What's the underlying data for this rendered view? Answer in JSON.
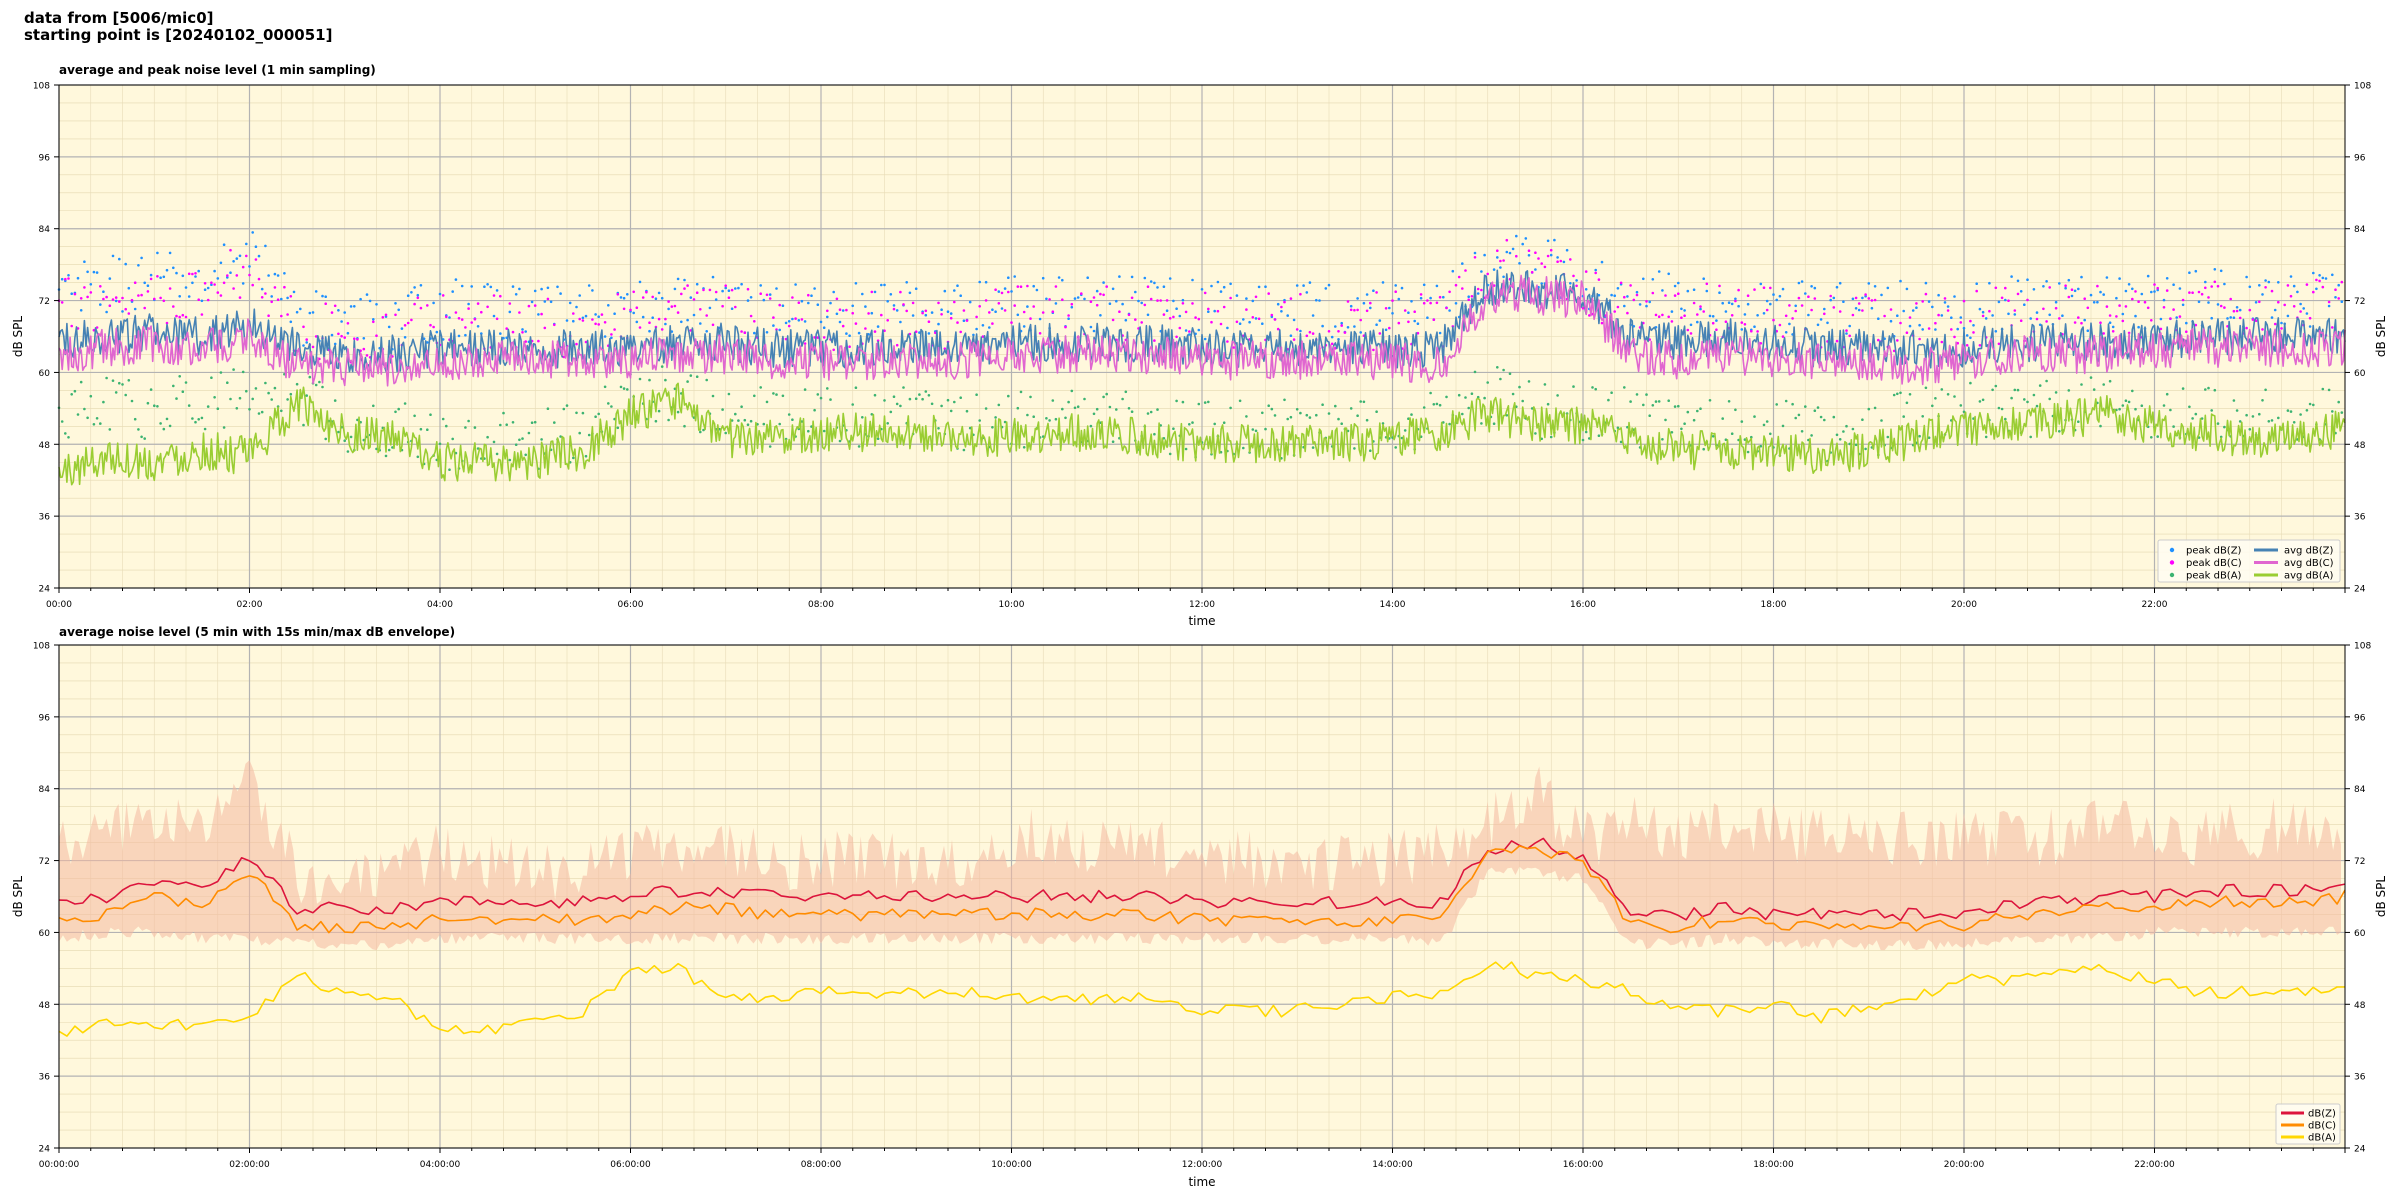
{
  "header": {
    "line1": "data from [5006/mic0]",
    "line2": "starting point is [20240102_000051]"
  },
  "chart_data": [
    {
      "type": "line",
      "title": "average and peak noise level (1 min sampling)",
      "xlabel": "time",
      "ylabel": "dB SPL",
      "ylim": [
        24,
        108
      ],
      "y_ticks": [
        24,
        36,
        48,
        60,
        72,
        84,
        96,
        108
      ],
      "xlim_hours": [
        0,
        24
      ],
      "x_tick_labels": [
        "00:00",
        "02:00",
        "04:00",
        "06:00",
        "08:00",
        "10:00",
        "12:00",
        "14:00",
        "16:00",
        "18:00",
        "20:00",
        "22:00"
      ],
      "x_tick_hours": [
        0,
        2,
        4,
        6,
        8,
        10,
        12,
        14,
        16,
        18,
        20,
        22
      ],
      "grid": true,
      "background": "#fff8dc",
      "legend_position": "lower-right",
      "legend_columns": 2,
      "x_hours": [
        0,
        0.5,
        1,
        1.5,
        2,
        2.5,
        3,
        3.5,
        4,
        4.5,
        5,
        5.5,
        6,
        6.5,
        7,
        7.5,
        8,
        8.5,
        9,
        9.5,
        10,
        10.5,
        11,
        11.5,
        12,
        12.5,
        13,
        13.5,
        14,
        14.5,
        15,
        15.5,
        16,
        16.5,
        17,
        17.5,
        18,
        18.5,
        19,
        19.5,
        20,
        20.5,
        21,
        21.5,
        22,
        22.5,
        23,
        23.5,
        24
      ],
      "series": [
        {
          "name": "avg dB(Z)",
          "kind": "line",
          "color": "#4682b4",
          "values": [
            65,
            66,
            67,
            66,
            68,
            64,
            63,
            63,
            64,
            64,
            64,
            64,
            64,
            65,
            65,
            64,
            64,
            64,
            64,
            64,
            65,
            65,
            65,
            65,
            64,
            64,
            64,
            64,
            64,
            64,
            74,
            74,
            73,
            66,
            65,
            66,
            65,
            64,
            64,
            64,
            64,
            65,
            65,
            65,
            65,
            66,
            66,
            66,
            66
          ]
        },
        {
          "name": "avg dB(C)",
          "kind": "line",
          "color": "#e066d0",
          "values": [
            63,
            64,
            65,
            64,
            66,
            61,
            61,
            61,
            62,
            62,
            62,
            62,
            62,
            63,
            63,
            62,
            62,
            62,
            62,
            62,
            63,
            63,
            63,
            63,
            62,
            62,
            62,
            62,
            62,
            61,
            73,
            73,
            72,
            63,
            62,
            63,
            62,
            62,
            62,
            61,
            62,
            63,
            63,
            63,
            64,
            64,
            64,
            64,
            64
          ]
        },
        {
          "name": "avg dB(A)",
          "kind": "line",
          "color": "#9acd32",
          "values": [
            43,
            46,
            45,
            47,
            46,
            55,
            50,
            49,
            45,
            45,
            45,
            47,
            53,
            55,
            49,
            49,
            50,
            50,
            50,
            49,
            49,
            50,
            50,
            49,
            48,
            48,
            48,
            48,
            49,
            50,
            53,
            51,
            51,
            49,
            47,
            47,
            47,
            46,
            47,
            49,
            51,
            51,
            52,
            53,
            51,
            50,
            49,
            49,
            51
          ]
        },
        {
          "name": "peak dB(Z)",
          "kind": "scatter",
          "color": "#1e90ff",
          "values": [
            72,
            74,
            75,
            74,
            80,
            69,
            68,
            68,
            70,
            70,
            69,
            69,
            70,
            71,
            71,
            70,
            70,
            70,
            70,
            70,
            71,
            71,
            71,
            71,
            70,
            70,
            70,
            70,
            70,
            70,
            78,
            78,
            75,
            72,
            71,
            72,
            71,
            70,
            70,
            70,
            70,
            71,
            71,
            71,
            72,
            72,
            72,
            72,
            72
          ]
        },
        {
          "name": "peak dB(C)",
          "kind": "scatter",
          "color": "#ff00ff",
          "values": [
            70,
            72,
            73,
            72,
            78,
            67,
            66,
            66,
            68,
            68,
            67,
            67,
            68,
            69,
            69,
            68,
            68,
            68,
            68,
            68,
            69,
            69,
            69,
            69,
            68,
            68,
            68,
            68,
            68,
            68,
            77,
            77,
            74,
            70,
            69,
            70,
            69,
            68,
            68,
            68,
            68,
            69,
            69,
            69,
            70,
            70,
            70,
            70,
            70
          ]
        },
        {
          "name": "peak dB(A)",
          "kind": "scatter",
          "color": "#3cb371",
          "values": [
            52,
            54,
            53,
            55,
            55,
            56,
            51,
            50,
            48,
            48,
            48,
            50,
            55,
            56,
            52,
            52,
            52,
            52,
            52,
            51,
            52,
            52,
            52,
            51,
            50,
            50,
            50,
            50,
            51,
            52,
            56,
            53,
            53,
            52,
            50,
            50,
            50,
            49,
            50,
            52,
            53,
            53,
            54,
            55,
            53,
            52,
            52,
            52,
            53
          ]
        }
      ]
    },
    {
      "type": "area",
      "title": "average noise level (5 min with 15s min/max dB envelope)",
      "xlabel": "time",
      "ylabel": "dB SPL",
      "ylim": [
        24,
        108
      ],
      "y_ticks": [
        24,
        36,
        48,
        60,
        72,
        84,
        96,
        108
      ],
      "xlim_hours": [
        0,
        24
      ],
      "x_tick_labels": [
        "00:00:00",
        "02:00:00",
        "04:00:00",
        "06:00:00",
        "08:00:00",
        "10:00:00",
        "12:00:00",
        "14:00:00",
        "16:00:00",
        "18:00:00",
        "20:00:00",
        "22:00:00"
      ],
      "x_tick_hours": [
        0,
        2,
        4,
        6,
        8,
        10,
        12,
        14,
        16,
        18,
        20,
        22
      ],
      "grid": true,
      "background": "#fff8dc",
      "legend_position": "lower-right",
      "legend_columns": 1,
      "x_hours": [
        0,
        0.5,
        1,
        1.5,
        2,
        2.5,
        3,
        3.5,
        4,
        4.5,
        5,
        5.5,
        6,
        6.5,
        7,
        7.5,
        8,
        8.5,
        9,
        9.5,
        10,
        10.5,
        11,
        11.5,
        12,
        12.5,
        13,
        13.5,
        14,
        14.5,
        15,
        15.5,
        16,
        16.5,
        17,
        17.5,
        18,
        18.5,
        19,
        19.5,
        20,
        20.5,
        21,
        21.5,
        22,
        22.5,
        23,
        23.5,
        24
      ],
      "envelope": {
        "color": "#f4b8a0",
        "min": [
          60,
          61,
          61,
          60,
          60,
          59,
          59,
          59,
          60,
          60,
          60,
          60,
          60,
          60,
          60,
          60,
          60,
          60,
          60,
          60,
          60,
          60,
          60,
          60,
          60,
          60,
          60,
          60,
          60,
          59,
          71,
          71,
          70,
          59,
          59,
          60,
          59,
          59,
          59,
          59,
          59,
          60,
          60,
          60,
          61,
          61,
          61,
          61,
          61
        ],
        "max": [
          74,
          76,
          80,
          76,
          86,
          70,
          68,
          69,
          74,
          72,
          70,
          70,
          74,
          75,
          74,
          72,
          72,
          72,
          72,
          72,
          76,
          76,
          74,
          74,
          72,
          72,
          72,
          72,
          72,
          74,
          78,
          84,
          75,
          78,
          76,
          78,
          77,
          76,
          76,
          76,
          76,
          76,
          76,
          78,
          76,
          76,
          77,
          78,
          76
        ]
      },
      "series": [
        {
          "name": "dB(Z)",
          "kind": "line",
          "color": "#dc143c",
          "values": [
            65,
            66,
            69,
            67,
            73,
            64,
            64,
            64,
            65,
            65,
            65,
            65,
            66,
            67,
            67,
            66,
            66,
            66,
            66,
            66,
            66,
            66,
            66,
            66,
            65,
            65,
            65,
            65,
            65,
            65,
            74,
            75,
            73,
            63,
            63,
            64,
            63,
            63,
            63,
            63,
            63,
            65,
            65,
            66,
            66,
            67,
            67,
            67,
            68
          ]
        },
        {
          "name": "dB(C)",
          "kind": "line",
          "color": "#ff8c00",
          "values": [
            62,
            63,
            66,
            64,
            70,
            61,
            61,
            61,
            62,
            62,
            62,
            62,
            63,
            64,
            64,
            63,
            63,
            63,
            63,
            63,
            63,
            63,
            63,
            63,
            62,
            62,
            62,
            62,
            62,
            62,
            73,
            74,
            72,
            61,
            61,
            62,
            61,
            61,
            61,
            61,
            61,
            63,
            63,
            64,
            64,
            65,
            65,
            65,
            66
          ]
        },
        {
          "name": "dB(A)",
          "kind": "line",
          "color": "#ffd700",
          "values": [
            43,
            45,
            44,
            45,
            46,
            53,
            50,
            49,
            44,
            44,
            45,
            47,
            53,
            54,
            49,
            49,
            50,
            50,
            50,
            50,
            49,
            49,
            49,
            49,
            47,
            47,
            47,
            48,
            49,
            50,
            55,
            53,
            52,
            50,
            47,
            47,
            48,
            46,
            48,
            49,
            52,
            52,
            53,
            54,
            52,
            50,
            50,
            50,
            51
          ]
        }
      ]
    }
  ]
}
